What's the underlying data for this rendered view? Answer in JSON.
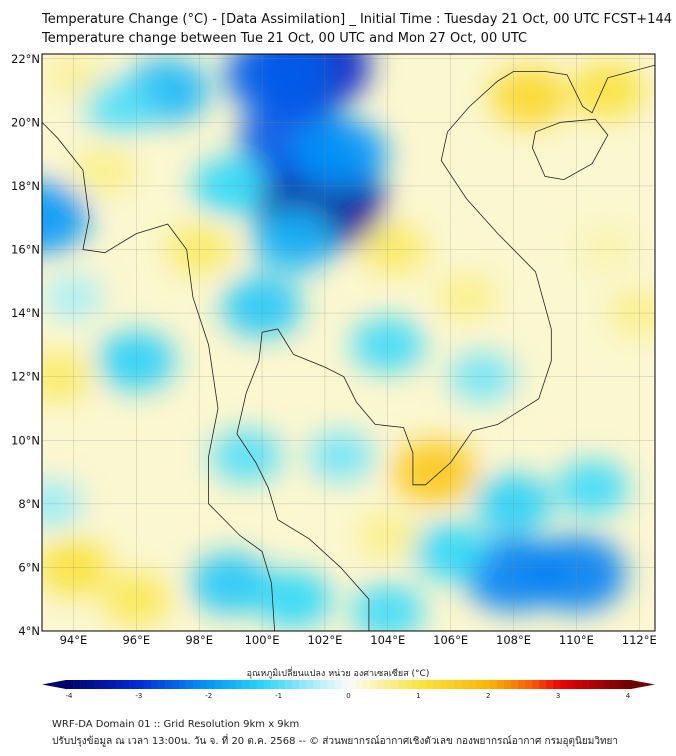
{
  "title_line1": "Temperature Change (°C) - [Data Assimilation] _ Initial Time : Tuesday 21 Oct, 00 UTC FCST+144",
  "title_line2": "Temperature change between Tue 21 Oct, 00 UTC and Mon 27 Oct, 00 UTC",
  "map": {
    "lon_range": [
      93,
      112.5
    ],
    "lat_range": [
      4,
      22.15
    ],
    "lon_ticks": [
      "94°E",
      "96°E",
      "98°E",
      "100°E",
      "102°E",
      "104°E",
      "106°E",
      "108°E",
      "110°E",
      "112°E"
    ],
    "lon_values": [
      94,
      96,
      98,
      100,
      102,
      104,
      106,
      108,
      110,
      112
    ],
    "lat_ticks": [
      "4°N",
      "6°N",
      "8°N",
      "10°N",
      "12°N",
      "14°N",
      "16°N",
      "18°N",
      "20°N",
      "22°N"
    ],
    "lat_values": [
      4,
      6,
      8,
      10,
      12,
      14,
      16,
      18,
      20,
      22
    ],
    "field": [
      [
        101.5,
        21.8,
        -3.2
      ],
      [
        100.5,
        21.5,
        -2.5
      ],
      [
        101.8,
        17.5,
        -3.6
      ],
      [
        101,
        19.5,
        -2.6
      ],
      [
        102.5,
        19,
        -2
      ],
      [
        101,
        16.3,
        -1.6
      ],
      [
        100,
        14.2,
        -1.4
      ],
      [
        99,
        18,
        -1.2
      ],
      [
        93,
        17,
        -2
      ],
      [
        97,
        21,
        -1.6
      ],
      [
        95.5,
        20.5,
        -1
      ],
      [
        96,
        12.5,
        -1.3
      ],
      [
        104,
        13,
        -1.1
      ],
      [
        99,
        5.5,
        -1.4
      ],
      [
        101,
        5,
        -1.2
      ],
      [
        108,
        5.8,
        -2.2
      ],
      [
        110,
        5.8,
        -2.2
      ],
      [
        108,
        8,
        -1.3
      ],
      [
        110.5,
        8.5,
        -1.1
      ],
      [
        104,
        4.6,
        -1.1
      ],
      [
        106,
        6.5,
        -1.2
      ],
      [
        107,
        12,
        -0.8
      ],
      [
        93.3,
        8,
        -0.6
      ],
      [
        99.5,
        9.5,
        -1.0
      ],
      [
        102.5,
        9.5,
        -0.8
      ],
      [
        94,
        14.5,
        -0.5
      ],
      [
        108.5,
        20.8,
        1.3
      ],
      [
        111,
        21,
        1.1
      ],
      [
        105.5,
        9,
        1.6
      ],
      [
        98,
        16,
        0.8
      ],
      [
        93.5,
        12,
        0.8
      ],
      [
        94,
        6,
        1.1
      ],
      [
        96,
        5,
        0.9
      ],
      [
        104,
        7,
        0.6
      ],
      [
        112,
        14,
        0.6
      ],
      [
        104.2,
        16,
        0.8
      ],
      [
        106.5,
        14.5,
        0.6
      ],
      [
        95,
        18.5,
        0.6
      ],
      [
        111,
        16,
        0.4
      ],
      [
        94,
        21.5,
        0.5
      ]
    ]
  },
  "colorbar": {
    "label": "อุณหภูมิเปลี่ยนแปลง หน่วย องศาเซลเซียส (°C)",
    "min": -4,
    "max": 4,
    "ticks": [
      "-4",
      "-3",
      "-2",
      "-1",
      "0",
      "1",
      "2",
      "3",
      "4"
    ]
  },
  "footer_line1": "WRF-DA Domain 01 :: Grid Resolution 9km x 9km",
  "footer_line2": "ปรับปรุงข้อมูล ณ เวลา 13:00น. วัน จ. ที่ 20 ต.ค. 2568 -- © ส่วนพยากรณ์อากาศเชิงตัวเลข กองพยากรณ์อากาศ กรมอุตุนิยมวิทยา"
}
